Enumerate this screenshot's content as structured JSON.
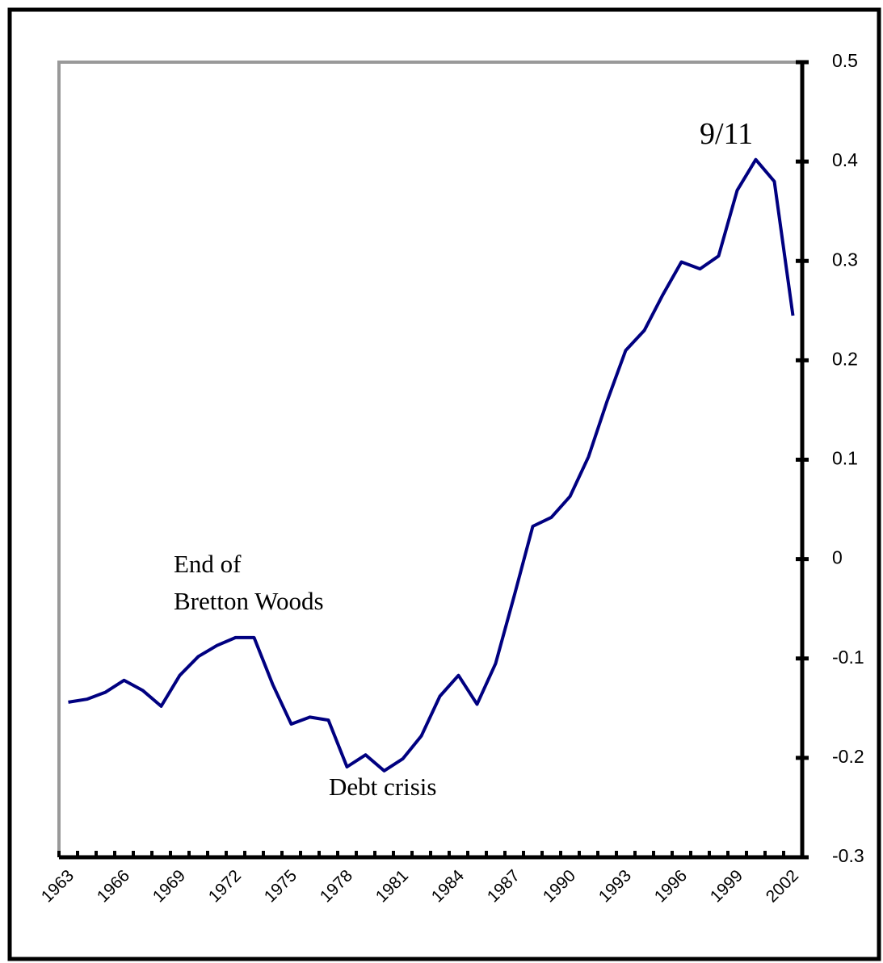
{
  "chart_data": {
    "type": "line",
    "categories": [
      "1963",
      null,
      null,
      "1966",
      null,
      null,
      "1969",
      null,
      null,
      "1972",
      null,
      null,
      "1975",
      null,
      null,
      "1978",
      null,
      null,
      "1981",
      null,
      null,
      "1984",
      null,
      null,
      "1987",
      null,
      null,
      "1990",
      null,
      null,
      "1993",
      null,
      null,
      "1996",
      null,
      null,
      "1999",
      null,
      null,
      "2002"
    ],
    "series": [
      {
        "color": "#000080",
        "values": [
          -0.144,
          -0.141,
          -0.134,
          -0.122,
          -0.132,
          -0.148,
          -0.117,
          -0.098,
          -0.087,
          -0.079,
          -0.079,
          -0.126,
          -0.166,
          -0.159,
          -0.162,
          -0.209,
          -0.197,
          -0.213,
          -0.201,
          -0.178,
          -0.138,
          -0.117,
          -0.146,
          -0.105,
          -0.037,
          0.033,
          0.042,
          0.063,
          0.103,
          0.159,
          0.21,
          0.23,
          0.266,
          0.299,
          0.292,
          0.305,
          0.371,
          0.402,
          0.38,
          0.245
        ]
      }
    ],
    "ylim": [
      -0.3,
      0.5
    ],
    "yticks": [
      -0.3,
      -0.2,
      -0.1,
      0,
      0.1,
      0.2,
      0.3,
      0.4,
      0.5
    ],
    "annotations": [
      {
        "text": "9/11"
      },
      {
        "text": "End of"
      },
      {
        "text": "Bretton Woods"
      },
      {
        "text": "Debt crisis"
      }
    ]
  }
}
